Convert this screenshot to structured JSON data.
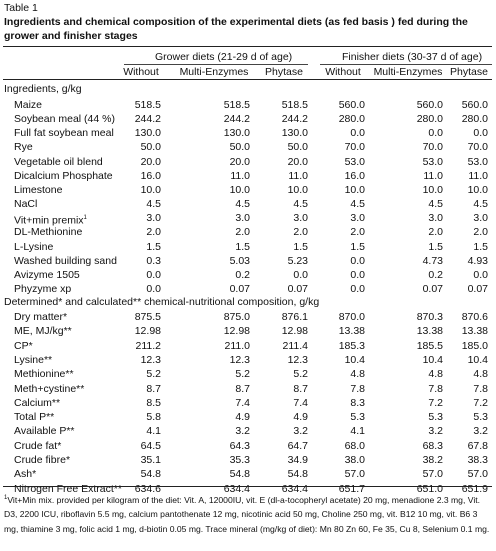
{
  "table_label": "Table 1",
  "caption": "Ingredients and chemical composition of the experimental diets (as fed basis ) fed during the grower and finisher stages",
  "header": {
    "grower": "Grower diets (21-29 d of age)",
    "finisher": "Finisher diets (30-37 d of age)",
    "columns": [
      "Without",
      "Multi-Enzymes",
      "Phytase",
      "Without",
      "Multi-Enzymes",
      "Phytase"
    ]
  },
  "section1": "Ingredients, g/kg",
  "section2": "Determined* and calculated** chemical-nutritional composition, g/kg",
  "ingredients": [
    {
      "label": "Maize",
      "values": [
        "518.5",
        "518.5",
        "518.5",
        "560.0",
        "560.0",
        "560.0"
      ]
    },
    {
      "label": "Soybean meal (44 %)",
      "values": [
        "244.2",
        "244.2",
        "244.2",
        "280.0",
        "280.0",
        "280.0"
      ]
    },
    {
      "label": "Full fat soybean meal",
      "values": [
        "130.0",
        "130.0",
        "130.0",
        "0.0",
        "0.0",
        "0.0"
      ]
    },
    {
      "label": "Rye",
      "values": [
        "50.0",
        "50.0",
        "50.0",
        "70.0",
        "70.0",
        "70.0"
      ]
    },
    {
      "label": "Vegetable oil blend",
      "values": [
        "20.0",
        "20.0",
        "20.0",
        "53.0",
        "53.0",
        "53.0"
      ]
    },
    {
      "label": "Dicalcium Phosphate",
      "values": [
        "16.0",
        "11.0",
        "11.0",
        "16.0",
        "11.0",
        "11.0"
      ]
    },
    {
      "label": "Limestone",
      "values": [
        "10.0",
        "10.0",
        "10.0",
        "10.0",
        "10.0",
        "10.0"
      ]
    },
    {
      "label": "NaCl",
      "values": [
        "4.5",
        "4.5",
        "4.5",
        "4.5",
        "4.5",
        "4.5"
      ]
    },
    {
      "label": "Vit+min premix",
      "sup": "1",
      "values": [
        "3.0",
        "3.0",
        "3.0",
        "3.0",
        "3.0",
        "3.0"
      ]
    },
    {
      "label": "DL-Methionine",
      "values": [
        "2.0",
        "2.0",
        "2.0",
        "2.0",
        "2.0",
        "2.0"
      ]
    },
    {
      "label": "L-Lysine",
      "values": [
        "1.5",
        "1.5",
        "1.5",
        "1.5",
        "1.5",
        "1.5"
      ]
    },
    {
      "label": "Washed building sand",
      "values": [
        "0.3",
        "5.03",
        "5.23",
        "0.0",
        "4.73",
        "4.93"
      ]
    },
    {
      "label": "Avizyme 1505",
      "values": [
        "0.0",
        "0.2",
        "0.0",
        "0.0",
        "0.2",
        "0.0"
      ]
    },
    {
      "label": "Phyzyme xp",
      "values": [
        "0.0",
        "0.07",
        "0.07",
        "0.0",
        "0.07",
        "0.07"
      ]
    }
  ],
  "composition": [
    {
      "label": "Dry matter*",
      "values": [
        "875.5",
        "875.0",
        "876.1",
        "870.0",
        "870.3",
        "870.6"
      ]
    },
    {
      "label": "ME, MJ/kg**",
      "values": [
        "12.98",
        "12.98",
        "12.98",
        "13.38",
        "13.38",
        "13.38"
      ]
    },
    {
      "label": "CP*",
      "values": [
        "211.2",
        "211.0",
        "211.4",
        "185.3",
        "185.5",
        "185.0"
      ]
    },
    {
      "label": "Lysine**",
      "values": [
        "12.3",
        "12.3",
        "12.3",
        "10.4",
        "10.4",
        "10.4"
      ]
    },
    {
      "label": "Methionine**",
      "values": [
        "5.2",
        "5.2",
        "5.2",
        "4.8",
        "4.8",
        "4.8"
      ]
    },
    {
      "label": "Meth+cystine**",
      "values": [
        "8.7",
        "8.7",
        "8.7",
        "7.8",
        "7.8",
        "7.8"
      ]
    },
    {
      "label": "Calcium**",
      "values": [
        "8.5",
        "7.4",
        "7.4",
        "8.3",
        "7.2",
        "7.2"
      ]
    },
    {
      "label": "Total P**",
      "values": [
        "5.8",
        "4.9",
        "4.9",
        "5.3",
        "5.3",
        "5.3"
      ]
    },
    {
      "label": "Available P**",
      "values": [
        "4.1",
        "3.2",
        "3.2",
        "4.1",
        "3.2",
        "3.2"
      ]
    },
    {
      "label": "Crude fat*",
      "values": [
        "64.5",
        "64.3",
        "64.7",
        "68.0",
        "68.3",
        "67.8"
      ]
    },
    {
      "label": "Crude fibre*",
      "values": [
        "35.1",
        "35.3",
        "34.9",
        "38.0",
        "38.2",
        "38.3"
      ]
    },
    {
      "label": "Ash*",
      "values": [
        "54.8",
        "54.8",
        "54.8",
        "57.0",
        "57.0",
        "57.0"
      ]
    },
    {
      "label": "Nitrogen Free Extract**",
      "values": [
        "634.6",
        "634.4",
        "634.4",
        "651.7",
        "651.0",
        "651.9"
      ]
    }
  ],
  "footnote": {
    "sup": "1",
    "text": "Vit+Min mix. provided per kilogram of the diet: Vit. A, 12000IU, vit. E (dl-a-tocopheryl acetate) 20 mg, menadione 2.3 mg, Vit. D3, 2200 ICU, riboflavin 5.5 mg, calcium pantothenate 12 mg, nicotinic acid 50 mg, Choline 250 mg, vit. B12 10 mg, vit. B6 3 mg, thiamine 3 mg, folic acid 1 mg, d-biotin 0.05 mg. Trace mineral (mg/kg of diet): Mn 80 Zn 60, Fe 35, Cu 8, Selenium 0.1 mg."
  }
}
